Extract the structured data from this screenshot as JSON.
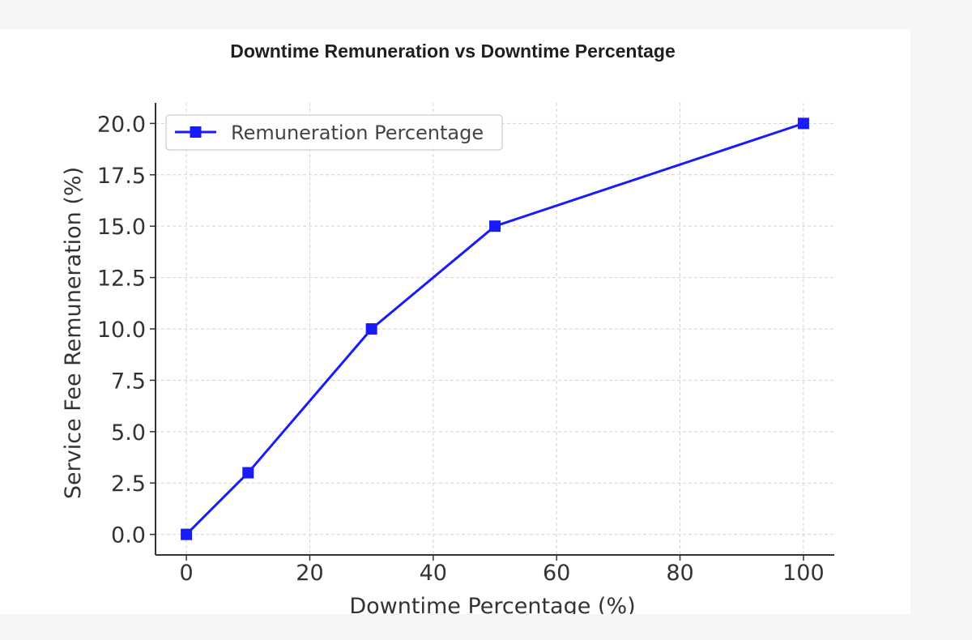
{
  "chart_data": {
    "type": "line",
    "title": "Downtime Remuneration vs Downtime Percentage",
    "xlabel": "Downtime Percentage (%)",
    "ylabel": "Service Fee Remuneration (%)",
    "xlim": [
      -5,
      105
    ],
    "ylim": [
      -1,
      21
    ],
    "x_ticks": [
      0,
      20,
      40,
      60,
      80,
      100
    ],
    "x_tick_labels": [
      "0",
      "20",
      "40",
      "60",
      "80",
      "100"
    ],
    "y_ticks": [
      0,
      2.5,
      5,
      7.5,
      10,
      12.5,
      15,
      17.5,
      20
    ],
    "y_tick_labels": [
      "0.0",
      "2.5",
      "5.0",
      "7.5",
      "10.0",
      "12.5",
      "15.0",
      "17.5",
      "20.0"
    ],
    "grid": true,
    "legend_position": "top-left",
    "series": [
      {
        "name": "Remuneration Percentage",
        "color": "#1a1aff",
        "marker": "square",
        "x": [
          0,
          10,
          30,
          50,
          100
        ],
        "y": [
          0,
          3,
          10,
          15,
          20
        ]
      }
    ]
  }
}
